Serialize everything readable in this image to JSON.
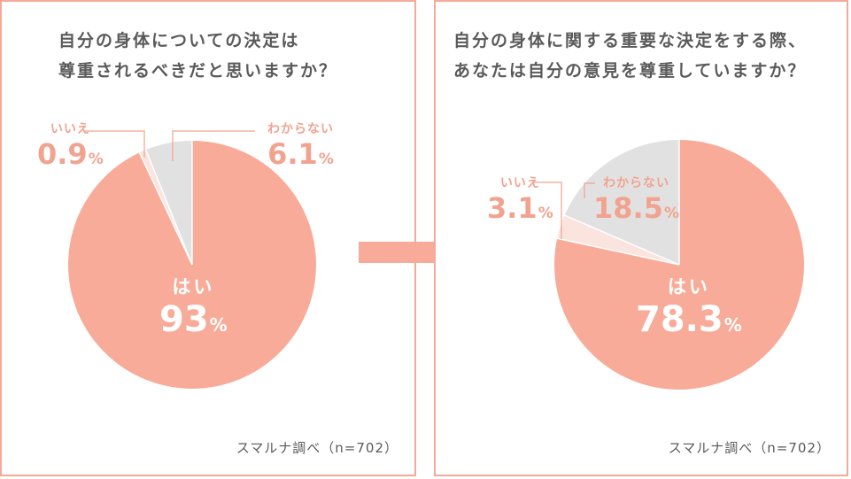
{
  "colors": {
    "yes": "#f8ab98",
    "no": "#fbe4de",
    "unknown": "#e2e1e1",
    "text": "#f1a390",
    "border": "#f4a999",
    "arrow": "#f8ab98"
  },
  "left": {
    "question": [
      "自分の身体についての決定は",
      "尊重されるべきだと思いますか？"
    ],
    "source": "スマルナ調べ（n=702）"
  },
  "right": {
    "question": [
      "自分の身体に関する重要な決定をする際、",
      "あなたは自分の意見を尊重していますか？"
    ],
    "source": "スマルナ調べ（n=702）"
  },
  "chart_data": [
    {
      "type": "pie",
      "title": "自分の身体についての決定は尊重されるべきだと思いますか？",
      "slices": [
        {
          "label": "はい",
          "value": 93,
          "value_text": "93",
          "unit": "%"
        },
        {
          "label": "いいえ",
          "value": 0.9,
          "value_text": "0.9",
          "unit": "%"
        },
        {
          "label": "わからない",
          "value": 6.1,
          "value_text": "6.1",
          "unit": "%"
        }
      ]
    },
    {
      "type": "pie",
      "title": "自分の身体に関する重要な決定をする際、あなたは自分の意見を尊重していますか？",
      "slices": [
        {
          "label": "はい",
          "value": 78.3,
          "value_text": "78.3",
          "unit": "%"
        },
        {
          "label": "いいえ",
          "value": 3.1,
          "value_text": "3.1",
          "unit": "%"
        },
        {
          "label": "わからない",
          "value": 18.5,
          "value_text": "18.5",
          "unit": "%"
        }
      ]
    }
  ]
}
